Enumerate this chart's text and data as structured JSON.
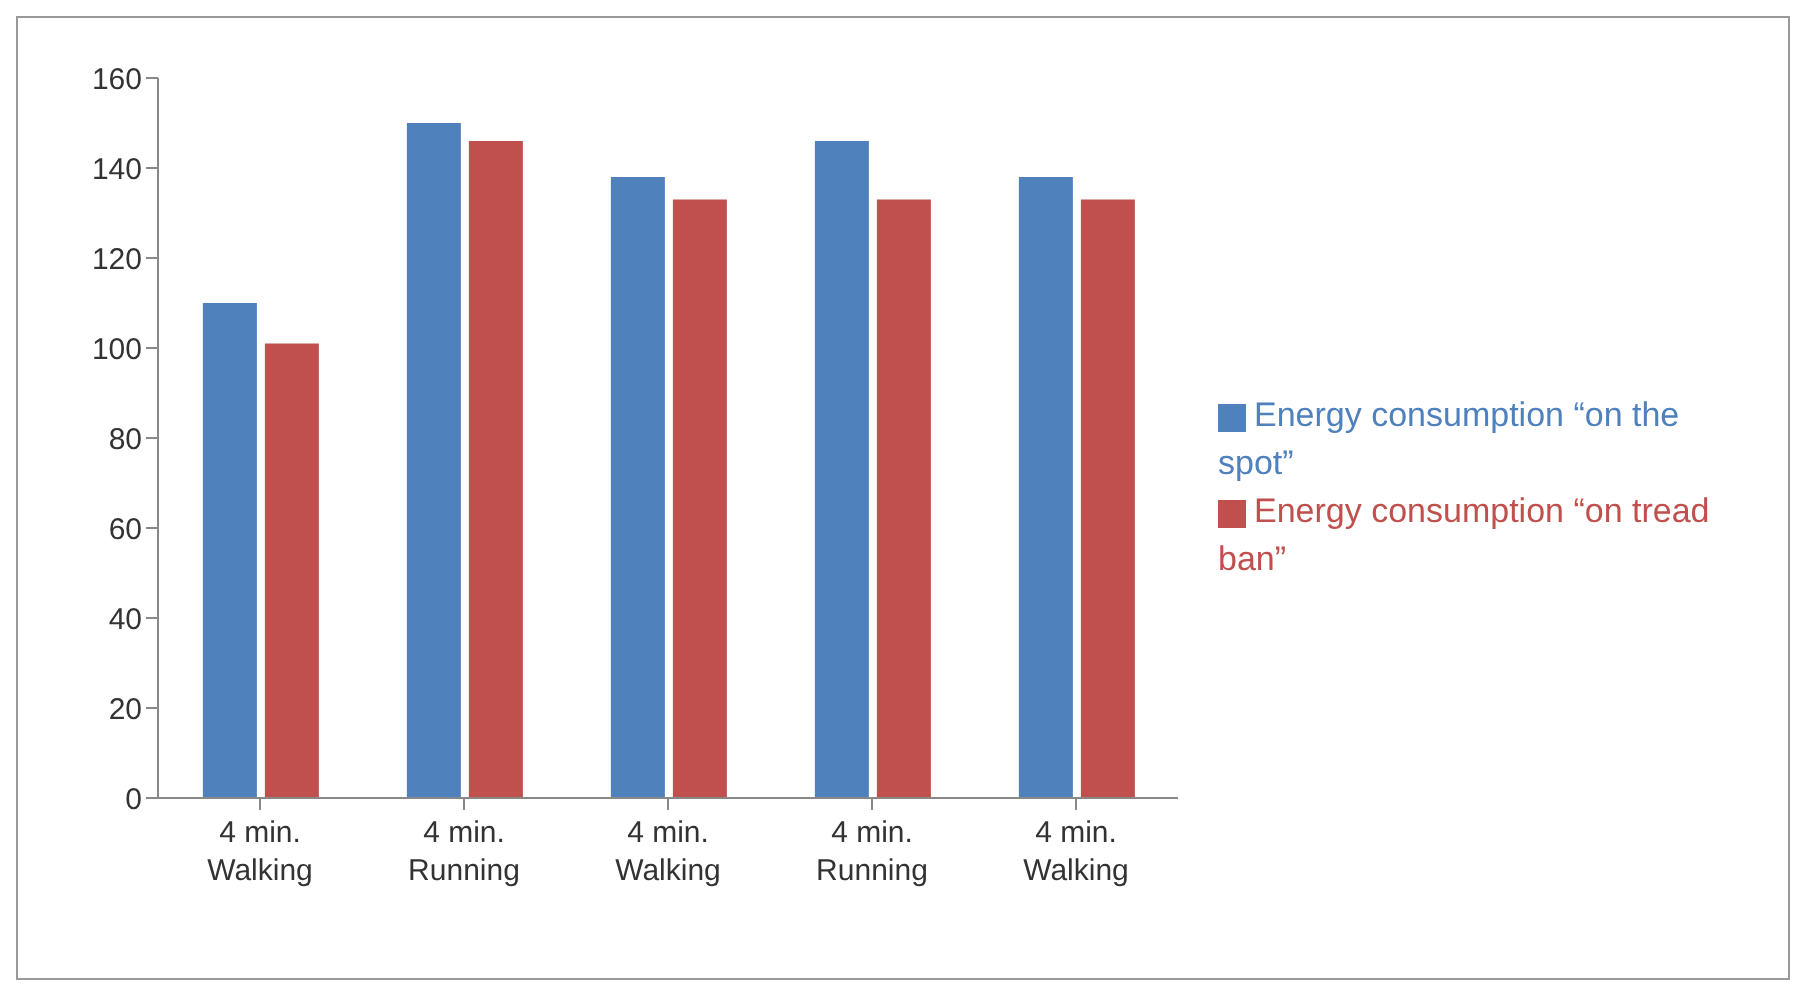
{
  "chart_data": {
    "type": "bar",
    "categories": [
      "4 min.\nWalking",
      "4 min.\nRunning",
      "4 min.\nWalking",
      "4 min.\nRunning",
      "4 min.\nWalking"
    ],
    "series": [
      {
        "name": "Energy consumption “on the spot”",
        "color": "#4f81bd",
        "values": [
          110,
          150,
          138,
          146,
          138
        ]
      },
      {
        "name": "Energy consumption “on tread ban”",
        "color": "#c0504d",
        "values": [
          101,
          146,
          133,
          133,
          133
        ]
      }
    ],
    "ylim": [
      0,
      160
    ],
    "yticks": [
      0,
      20,
      40,
      60,
      80,
      100,
      120,
      140,
      160
    ],
    "grid": false,
    "legend": "right"
  }
}
